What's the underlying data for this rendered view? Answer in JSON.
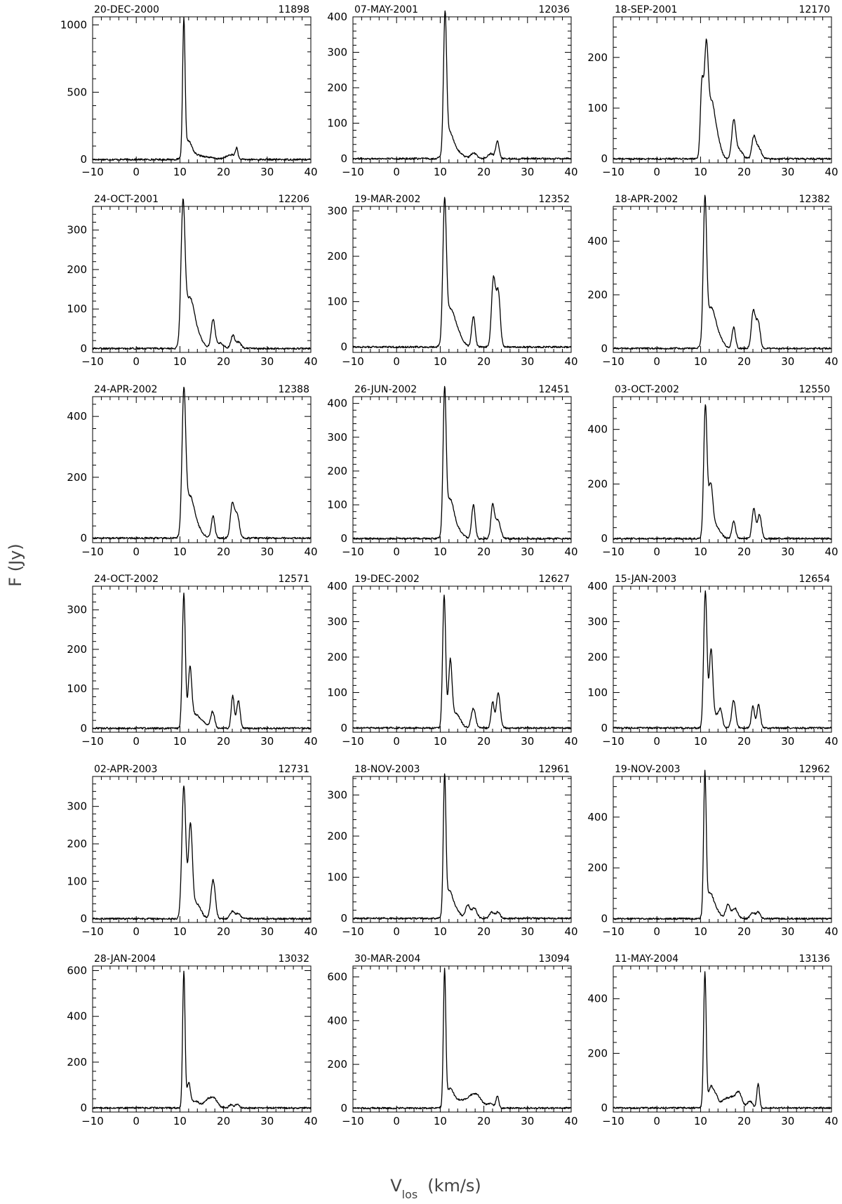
{
  "figure": {
    "ylabel": "F (Jy)",
    "xlabel_main": "V",
    "xlabel_sub": "los",
    "xlabel_unit": "(km/s)"
  },
  "chart_data": [
    {
      "type": "line",
      "date": "20-DEC-2000",
      "id": "11898",
      "xlim": [
        -10,
        40
      ],
      "ylim": [
        -25,
        1060
      ],
      "yticks": [
        0,
        500,
        1000
      ],
      "xticks": [
        -10,
        0,
        10,
        20,
        30,
        40
      ],
      "peaks": [
        [
          10.9,
          990,
          0.28
        ],
        [
          11.9,
          120,
          0.8
        ],
        [
          13.5,
          30,
          1.5
        ],
        [
          16.5,
          14,
          1.5
        ],
        [
          20.8,
          20,
          0.8
        ],
        [
          22.0,
          28,
          0.6
        ],
        [
          23.0,
          80,
          0.3
        ]
      ]
    },
    {
      "type": "line",
      "date": "07-MAY-2001",
      "id": "12036",
      "xlim": [
        -10,
        40
      ],
      "ylim": [
        -12,
        400
      ],
      "yticks": [
        0,
        100,
        200,
        300,
        400
      ],
      "xticks": [
        -10,
        0,
        10,
        20,
        30,
        40
      ],
      "peaks": [
        [
          11.1,
          375,
          0.35
        ],
        [
          12.0,
          70,
          0.9
        ],
        [
          13.8,
          20,
          1.2
        ],
        [
          17.7,
          15,
          0.7
        ],
        [
          21.5,
          14,
          0.6
        ],
        [
          23.1,
          48,
          0.4
        ]
      ]
    },
    {
      "type": "line",
      "date": "18-SEP-2001",
      "id": "12170",
      "xlim": [
        -10,
        40
      ],
      "ylim": [
        -8,
        280
      ],
      "yticks": [
        0,
        100,
        200
      ],
      "xticks": [
        -10,
        0,
        10,
        20,
        30,
        40
      ],
      "peaks": [
        [
          10.3,
          140,
          0.35
        ],
        [
          11.3,
          210,
          0.45
        ],
        [
          12.5,
          100,
          0.7
        ],
        [
          13.8,
          40,
          0.8
        ],
        [
          17.6,
          72,
          0.45
        ],
        [
          18.8,
          18,
          0.8
        ],
        [
          22.2,
          42,
          0.45
        ],
        [
          23.3,
          22,
          0.6
        ]
      ]
    },
    {
      "type": "line",
      "date": "24-OCT-2001",
      "id": "12206",
      "xlim": [
        -10,
        40
      ],
      "ylim": [
        -10,
        360
      ],
      "yticks": [
        0,
        100,
        200,
        300
      ],
      "xticks": [
        -10,
        0,
        10,
        20,
        30,
        40
      ],
      "peaks": [
        [
          10.7,
          340,
          0.45
        ],
        [
          12.2,
          120,
          1.0
        ],
        [
          14.0,
          32,
          1.1
        ],
        [
          17.6,
          72,
          0.45
        ],
        [
          19.2,
          14,
          0.8
        ],
        [
          22.1,
          32,
          0.45
        ],
        [
          23.4,
          16,
          0.6
        ]
      ]
    },
    {
      "type": "line",
      "date": "19-MAR-2002",
      "id": "12352",
      "xlim": [
        -10,
        40
      ],
      "ylim": [
        -12,
        310
      ],
      "yticks": [
        0,
        100,
        200,
        300
      ],
      "xticks": [
        -10,
        0,
        10,
        20,
        30,
        40
      ],
      "peaks": [
        [
          11.0,
          295,
          0.4
        ],
        [
          12.3,
          80,
          1.0
        ],
        [
          14.2,
          25,
          1.0
        ],
        [
          17.6,
          68,
          0.4
        ],
        [
          22.2,
          150,
          0.45
        ],
        [
          23.3,
          120,
          0.45
        ]
      ]
    },
    {
      "type": "line",
      "date": "18-APR-2002",
      "id": "12382",
      "xlim": [
        -10,
        40
      ],
      "ylim": [
        -15,
        530
      ],
      "yticks": [
        0,
        200,
        400
      ],
      "xticks": [
        -10,
        0,
        10,
        20,
        30,
        40
      ],
      "peaks": [
        [
          11.0,
          510,
          0.38
        ],
        [
          12.3,
          140,
          1.0
        ],
        [
          14.0,
          40,
          1.1
        ],
        [
          17.6,
          78,
          0.4
        ],
        [
          22.1,
          140,
          0.45
        ],
        [
          23.2,
          100,
          0.45
        ]
      ]
    },
    {
      "type": "line",
      "date": "24-APR-2002",
      "id": "12388",
      "xlim": [
        -10,
        40
      ],
      "ylim": [
        -15,
        465
      ],
      "yticks": [
        0,
        200,
        400
      ],
      "xticks": [
        -10,
        0,
        10,
        20,
        30,
        40
      ],
      "peaks": [
        [
          10.9,
          440,
          0.42
        ],
        [
          12.2,
          130,
          1.0
        ],
        [
          14.0,
          30,
          1.1
        ],
        [
          17.6,
          72,
          0.4
        ],
        [
          22.0,
          110,
          0.45
        ],
        [
          23.1,
          78,
          0.5
        ]
      ]
    },
    {
      "type": "line",
      "date": "26-JUN-2002",
      "id": "12451",
      "xlim": [
        -10,
        40
      ],
      "ylim": [
        -12,
        420
      ],
      "yticks": [
        0,
        100,
        200,
        300,
        400
      ],
      "xticks": [
        -10,
        0,
        10,
        20,
        30,
        40
      ],
      "peaks": [
        [
          11.0,
          405,
          0.35
        ],
        [
          12.2,
          110,
          0.9
        ],
        [
          14.0,
          25,
          1.1
        ],
        [
          17.6,
          100,
          0.4
        ],
        [
          22.0,
          95,
          0.4
        ],
        [
          23.2,
          55,
          0.6
        ]
      ]
    },
    {
      "type": "line",
      "date": "03-OCT-2002",
      "id": "12550",
      "xlim": [
        -10,
        40
      ],
      "ylim": [
        -15,
        520
      ],
      "yticks": [
        0,
        200,
        400
      ],
      "xticks": [
        -10,
        0,
        10,
        20,
        30,
        40
      ],
      "peaks": [
        [
          11.1,
          480,
          0.38
        ],
        [
          12.3,
          180,
          0.5
        ],
        [
          13.5,
          45,
          1.0
        ],
        [
          17.6,
          65,
          0.4
        ],
        [
          22.2,
          110,
          0.4
        ],
        [
          23.5,
          88,
          0.45
        ]
      ]
    },
    {
      "type": "line",
      "date": "24-OCT-2002",
      "id": "12571",
      "xlim": [
        -10,
        40
      ],
      "ylim": [
        -10,
        360
      ],
      "yticks": [
        0,
        100,
        200,
        300
      ],
      "xticks": [
        -10,
        0,
        10,
        20,
        30,
        40
      ],
      "peaks": [
        [
          10.9,
          340,
          0.35
        ],
        [
          12.3,
          140,
          0.4
        ],
        [
          13.5,
          35,
          1.0
        ],
        [
          15.5,
          12,
          0.8
        ],
        [
          17.5,
          42,
          0.45
        ],
        [
          22.1,
          82,
          0.35
        ],
        [
          23.4,
          70,
          0.4
        ]
      ]
    },
    {
      "type": "line",
      "date": "19-DEC-2002",
      "id": "12627",
      "xlim": [
        -10,
        40
      ],
      "ylim": [
        -12,
        400
      ],
      "yticks": [
        0,
        100,
        200,
        300,
        400
      ],
      "xticks": [
        -10,
        0,
        10,
        20,
        30,
        40
      ],
      "peaks": [
        [
          10.9,
          375,
          0.35
        ],
        [
          12.3,
          178,
          0.4
        ],
        [
          13.6,
          40,
          1.0
        ],
        [
          17.6,
          55,
          0.5
        ],
        [
          22.0,
          72,
          0.35
        ],
        [
          23.3,
          98,
          0.45
        ]
      ]
    },
    {
      "type": "line",
      "date": "15-JAN-2003",
      "id": "12654",
      "xlim": [
        -10,
        40
      ],
      "ylim": [
        -12,
        400
      ],
      "yticks": [
        0,
        100,
        200,
        300,
        400
      ],
      "xticks": [
        -10,
        0,
        10,
        20,
        30,
        40
      ],
      "peaks": [
        [
          11.1,
          385,
          0.38
        ],
        [
          12.4,
          212,
          0.4
        ],
        [
          13.6,
          35,
          0.8
        ],
        [
          14.6,
          38,
          0.4
        ],
        [
          17.6,
          78,
          0.45
        ],
        [
          22.0,
          62,
          0.35
        ],
        [
          23.3,
          65,
          0.4
        ]
      ]
    },
    {
      "type": "line",
      "date": "02-APR-2003",
      "id": "12731",
      "xlim": [
        -10,
        40
      ],
      "ylim": [
        -10,
        380
      ],
      "yticks": [
        0,
        100,
        200,
        300
      ],
      "xticks": [
        -10,
        0,
        10,
        20,
        30,
        40
      ],
      "peaks": [
        [
          10.9,
          355,
          0.45
        ],
        [
          12.4,
          240,
          0.45
        ],
        [
          13.8,
          40,
          1.0
        ],
        [
          17.6,
          103,
          0.5
        ],
        [
          22.0,
          20,
          0.5
        ],
        [
          23.4,
          15,
          0.5
        ]
      ]
    },
    {
      "type": "line",
      "date": "18-NOV-2003",
      "id": "12961",
      "xlim": [
        -10,
        40
      ],
      "ylim": [
        -10,
        345
      ],
      "yticks": [
        0,
        100,
        200,
        300
      ],
      "xticks": [
        -10,
        0,
        10,
        20,
        30,
        40
      ],
      "peaks": [
        [
          11.0,
          325,
          0.3
        ],
        [
          12.0,
          60,
          0.8
        ],
        [
          13.5,
          20,
          1.0
        ],
        [
          16.3,
          32,
          0.5
        ],
        [
          17.8,
          25,
          0.6
        ],
        [
          21.8,
          15,
          0.5
        ],
        [
          23.2,
          15,
          0.5
        ]
      ]
    },
    {
      "type": "line",
      "date": "19-NOV-2003",
      "id": "12962",
      "xlim": [
        -10,
        40
      ],
      "ylim": [
        -15,
        560
      ],
      "yticks": [
        0,
        200,
        400
      ],
      "xticks": [
        -10,
        0,
        10,
        20,
        30,
        40
      ],
      "peaks": [
        [
          11.0,
          545,
          0.3
        ],
        [
          12.1,
          90,
          0.8
        ],
        [
          13.5,
          30,
          1.0
        ],
        [
          16.3,
          55,
          0.5
        ],
        [
          17.9,
          40,
          0.6
        ],
        [
          21.9,
          22,
          0.5
        ],
        [
          23.2,
          25,
          0.5
        ]
      ]
    },
    {
      "type": "line",
      "date": "28-JAN-2004",
      "id": "13032",
      "xlim": [
        -10,
        40
      ],
      "ylim": [
        -18,
        620
      ],
      "yticks": [
        0,
        200,
        400,
        600
      ],
      "xticks": [
        -10,
        0,
        10,
        20,
        30,
        40
      ],
      "peaks": [
        [
          10.9,
          595,
          0.28
        ],
        [
          12.0,
          100,
          0.4
        ],
        [
          13.5,
          30,
          1.0
        ],
        [
          16.3,
          32,
          0.8
        ],
        [
          17.8,
          40,
          0.8
        ],
        [
          21.8,
          14,
          0.5
        ],
        [
          23.2,
          18,
          0.4
        ]
      ]
    },
    {
      "type": "line",
      "date": "30-MAR-2004",
      "id": "13094",
      "xlim": [
        -10,
        40
      ],
      "ylim": [
        -18,
        650
      ],
      "yticks": [
        0,
        200,
        400,
        600
      ],
      "xticks": [
        -10,
        0,
        10,
        20,
        30,
        40
      ],
      "peaks": [
        [
          11.0,
          610,
          0.28
        ],
        [
          12.2,
          80,
          0.8
        ],
        [
          14.0,
          30,
          1.2
        ],
        [
          16.8,
          40,
          1.3
        ],
        [
          18.5,
          45,
          1.1
        ],
        [
          21.5,
          20,
          0.8
        ],
        [
          23.1,
          55,
          0.3
        ]
      ]
    },
    {
      "type": "line",
      "date": "11-MAY-2004",
      "id": "13136",
      "xlim": [
        -10,
        40
      ],
      "ylim": [
        -15,
        520
      ],
      "yticks": [
        0,
        200,
        400
      ],
      "xticks": [
        -10,
        0,
        10,
        20,
        30,
        40
      ],
      "peaks": [
        [
          11.0,
          495,
          0.3
        ],
        [
          12.3,
          70,
          0.5
        ],
        [
          13.4,
          50,
          0.6
        ],
        [
          15.5,
          30,
          0.8
        ],
        [
          17.2,
          35,
          0.8
        ],
        [
          18.8,
          55,
          0.7
        ],
        [
          21.3,
          25,
          0.6
        ],
        [
          23.2,
          88,
          0.3
        ]
      ]
    }
  ]
}
